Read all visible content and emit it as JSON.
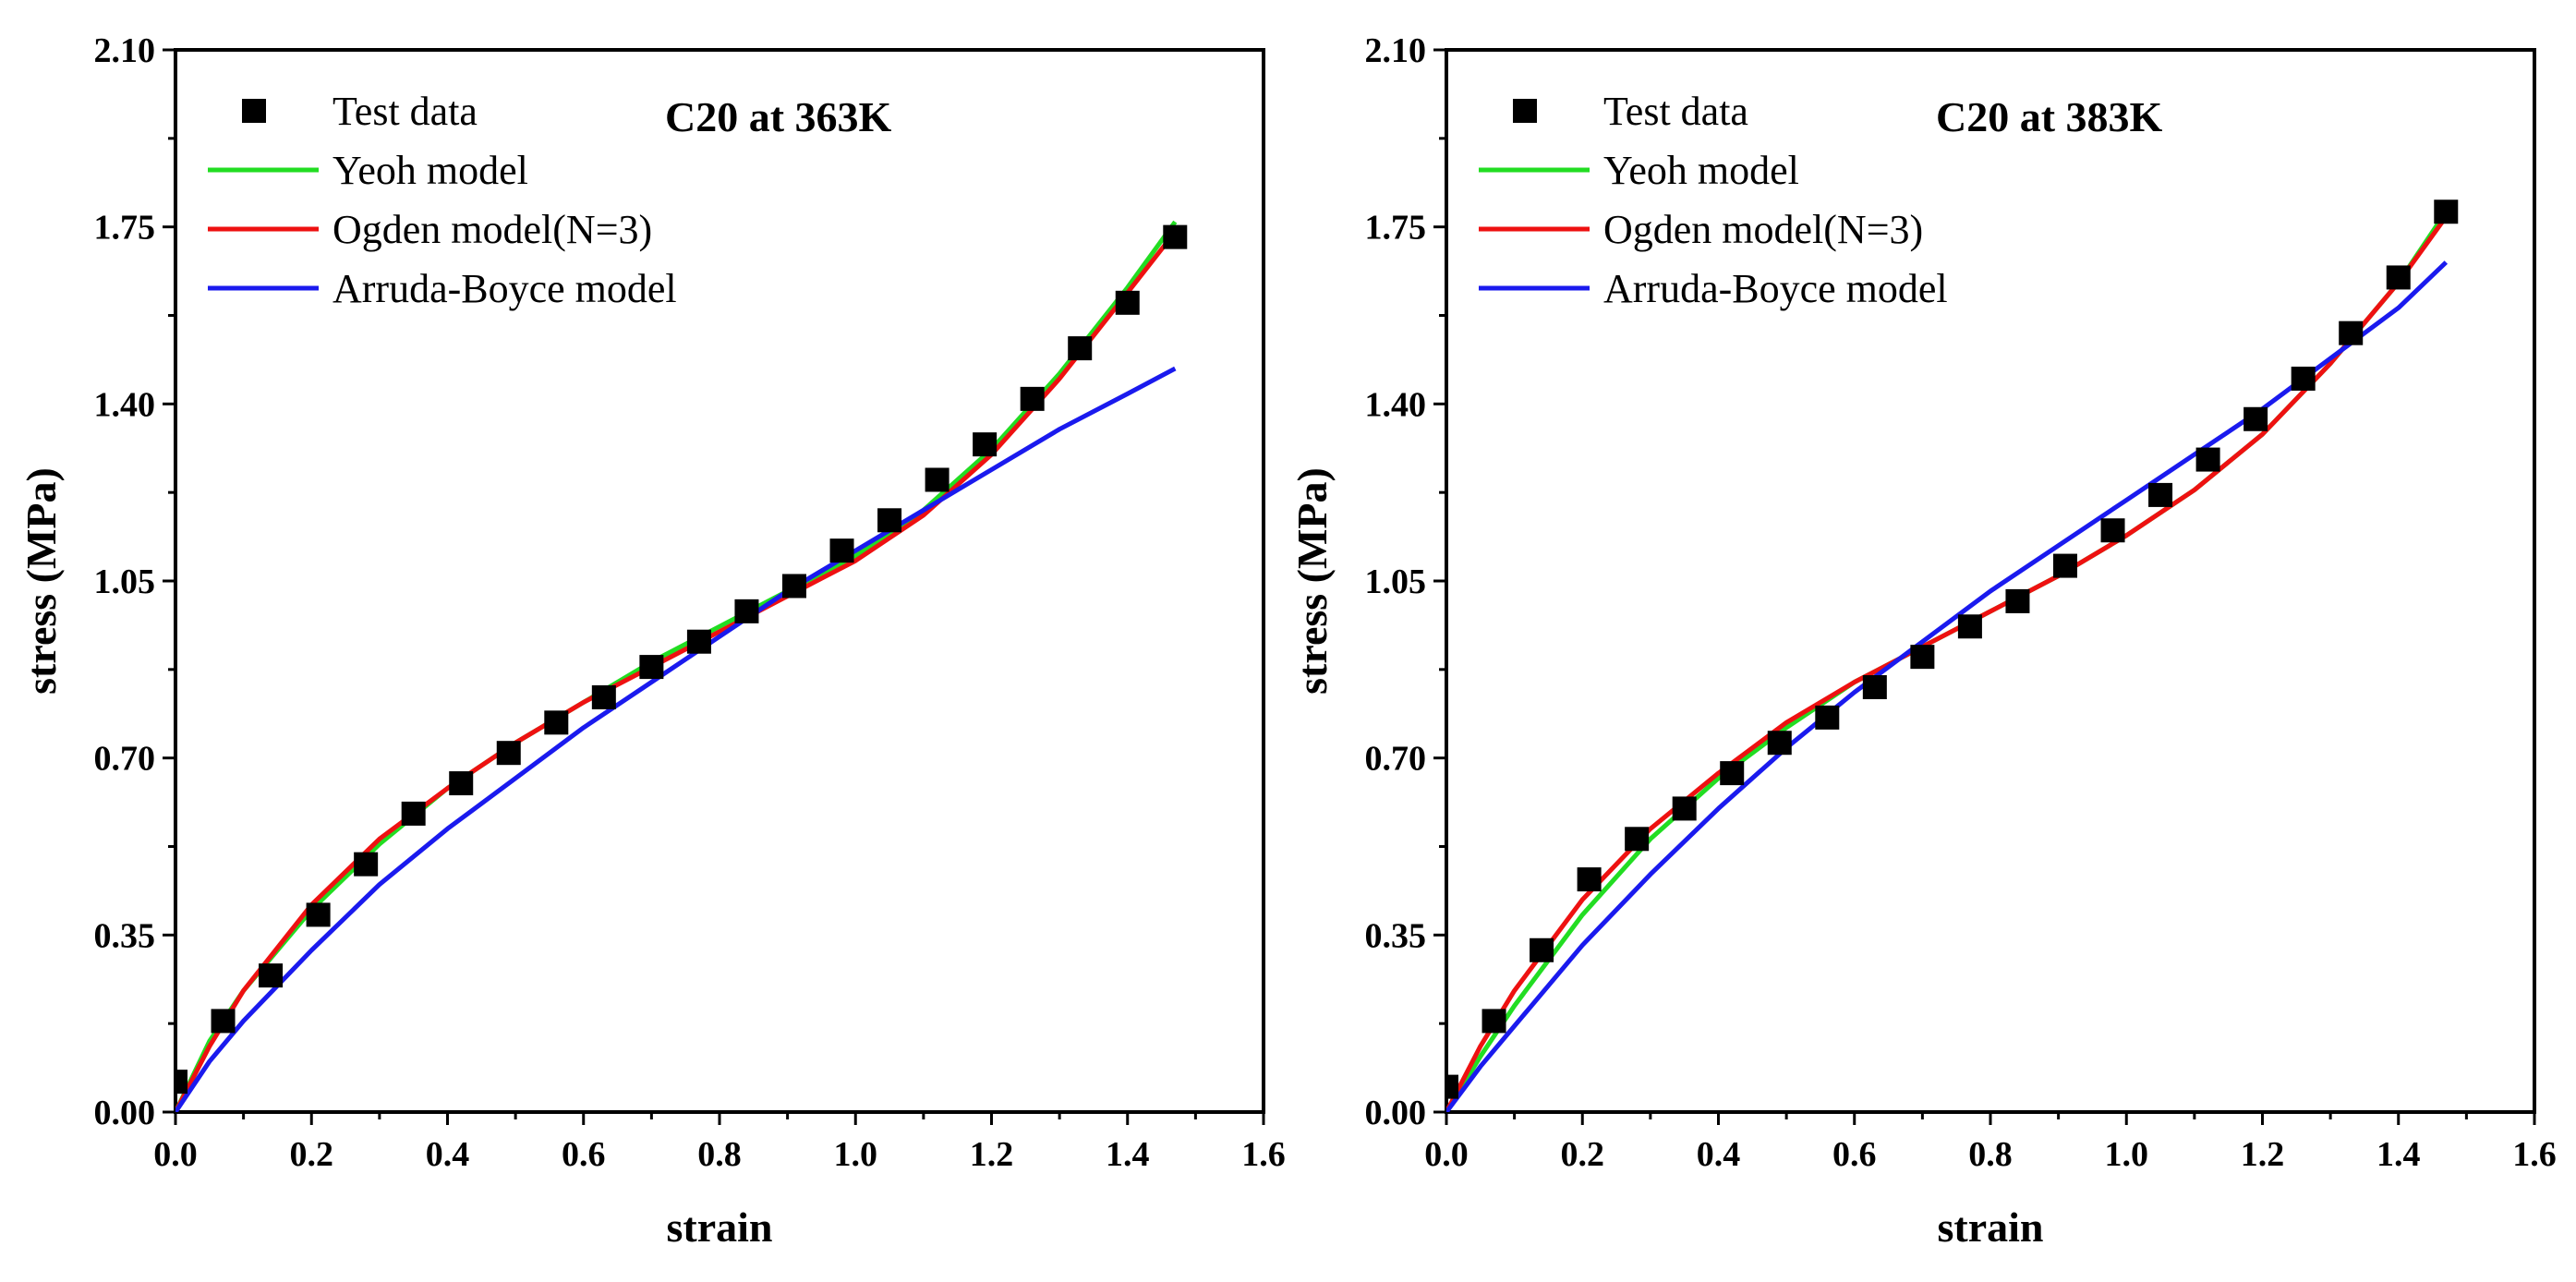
{
  "chart_data": [
    {
      "type": "line",
      "title": "C20 at 363K",
      "xlabel": "strain",
      "ylabel": "stress (MPa)",
      "xlim": [
        0.0,
        1.6
      ],
      "ylim": [
        0.0,
        2.1
      ],
      "xticks": [
        "0.0",
        "0.2",
        "0.4",
        "0.6",
        "0.8",
        "1.0",
        "1.2",
        "1.4",
        "1.6"
      ],
      "yticks": [
        "0.00",
        "0.35",
        "0.70",
        "1.05",
        "1.40",
        "1.75",
        "2.10"
      ],
      "grid": false,
      "legend_position": "top-left",
      "series": [
        {
          "name": "Test data",
          "kind": "scatter",
          "marker": "square",
          "color": "#000000",
          "x": [
            0.0,
            0.07,
            0.14,
            0.21,
            0.28,
            0.35,
            0.42,
            0.49,
            0.56,
            0.63,
            0.7,
            0.77,
            0.84,
            0.91,
            0.98,
            1.05,
            1.12,
            1.19,
            1.26,
            1.33,
            1.4,
            1.47
          ],
          "y": [
            0.06,
            0.18,
            0.27,
            0.39,
            0.49,
            0.59,
            0.65,
            0.71,
            0.77,
            0.82,
            0.88,
            0.93,
            0.99,
            1.04,
            1.11,
            1.17,
            1.25,
            1.32,
            1.41,
            1.51,
            1.6,
            1.73
          ]
        },
        {
          "name": "Yeoh model",
          "kind": "line",
          "color": "#22dd22",
          "x": [
            0.0,
            0.05,
            0.1,
            0.2,
            0.3,
            0.4,
            0.5,
            0.6,
            0.7,
            0.8,
            0.9,
            1.0,
            1.1,
            1.2,
            1.3,
            1.4,
            1.47
          ],
          "y": [
            0.0,
            0.14,
            0.24,
            0.4,
            0.53,
            0.64,
            0.73,
            0.81,
            0.89,
            0.96,
            1.03,
            1.1,
            1.19,
            1.31,
            1.46,
            1.63,
            1.76
          ]
        },
        {
          "name": "Ogden model(N=3)",
          "kind": "line",
          "color": "#ee1111",
          "x": [
            0.0,
            0.05,
            0.1,
            0.2,
            0.3,
            0.4,
            0.5,
            0.6,
            0.7,
            0.8,
            0.9,
            1.0,
            1.1,
            1.2,
            1.3,
            1.4,
            1.47
          ],
          "y": [
            0.0,
            0.13,
            0.24,
            0.41,
            0.54,
            0.64,
            0.73,
            0.81,
            0.88,
            0.95,
            1.02,
            1.09,
            1.18,
            1.3,
            1.45,
            1.62,
            1.74
          ]
        },
        {
          "name": "Arruda-Boyce model",
          "kind": "line",
          "color": "#1a1aee",
          "x": [
            0.0,
            0.05,
            0.1,
            0.2,
            0.3,
            0.4,
            0.5,
            0.6,
            0.7,
            0.8,
            0.9,
            1.0,
            1.1,
            1.2,
            1.3,
            1.4,
            1.47
          ],
          "y": [
            0.0,
            0.1,
            0.18,
            0.32,
            0.45,
            0.56,
            0.66,
            0.76,
            0.85,
            0.94,
            1.03,
            1.11,
            1.19,
            1.27,
            1.35,
            1.42,
            1.47
          ]
        }
      ]
    },
    {
      "type": "line",
      "title": "C20 at 383K",
      "xlabel": "strain",
      "ylabel": "stress (MPa)",
      "xlim": [
        0.0,
        1.6
      ],
      "ylim": [
        0.0,
        2.1
      ],
      "xticks": [
        "0.0",
        "0.2",
        "0.4",
        "0.6",
        "0.8",
        "1.0",
        "1.2",
        "1.4",
        "1.6"
      ],
      "yticks": [
        "0.00",
        "0.35",
        "0.70",
        "1.05",
        "1.40",
        "1.75",
        "2.10"
      ],
      "grid": false,
      "legend_position": "top-left",
      "series": [
        {
          "name": "Test data",
          "kind": "scatter",
          "marker": "square",
          "color": "#000000",
          "x": [
            0.0,
            0.07,
            0.14,
            0.21,
            0.28,
            0.35,
            0.42,
            0.49,
            0.56,
            0.63,
            0.7,
            0.77,
            0.84,
            0.91,
            0.98,
            1.05,
            1.12,
            1.19,
            1.26,
            1.33,
            1.4,
            1.47
          ],
          "y": [
            0.05,
            0.18,
            0.32,
            0.46,
            0.54,
            0.6,
            0.67,
            0.73,
            0.78,
            0.84,
            0.9,
            0.96,
            1.01,
            1.08,
            1.15,
            1.22,
            1.29,
            1.37,
            1.45,
            1.54,
            1.65,
            1.78
          ]
        },
        {
          "name": "Yeoh model",
          "kind": "line",
          "color": "#22dd22",
          "x": [
            0.0,
            0.05,
            0.1,
            0.2,
            0.3,
            0.4,
            0.5,
            0.6,
            0.7,
            0.8,
            0.9,
            1.0,
            1.1,
            1.2,
            1.3,
            1.4,
            1.47
          ],
          "y": [
            0.0,
            0.11,
            0.21,
            0.39,
            0.54,
            0.66,
            0.76,
            0.85,
            0.92,
            0.99,
            1.06,
            1.14,
            1.23,
            1.34,
            1.48,
            1.64,
            1.78
          ]
        },
        {
          "name": "Ogden model(N=3)",
          "kind": "line",
          "color": "#ee1111",
          "x": [
            0.0,
            0.05,
            0.1,
            0.2,
            0.3,
            0.4,
            0.5,
            0.6,
            0.7,
            0.8,
            0.9,
            1.0,
            1.1,
            1.2,
            1.3,
            1.4,
            1.47
          ],
          "y": [
            0.0,
            0.13,
            0.24,
            0.42,
            0.56,
            0.67,
            0.77,
            0.85,
            0.92,
            0.99,
            1.06,
            1.14,
            1.23,
            1.34,
            1.48,
            1.64,
            1.77
          ]
        },
        {
          "name": "Arruda-Boyce model",
          "kind": "line",
          "color": "#1a1aee",
          "x": [
            0.0,
            0.05,
            0.1,
            0.2,
            0.3,
            0.4,
            0.5,
            0.6,
            0.7,
            0.8,
            0.9,
            1.0,
            1.1,
            1.2,
            1.3,
            1.4,
            1.47
          ],
          "y": [
            0.0,
            0.09,
            0.17,
            0.33,
            0.47,
            0.6,
            0.72,
            0.83,
            0.93,
            1.03,
            1.12,
            1.21,
            1.3,
            1.39,
            1.49,
            1.59,
            1.68
          ]
        }
      ]
    }
  ]
}
